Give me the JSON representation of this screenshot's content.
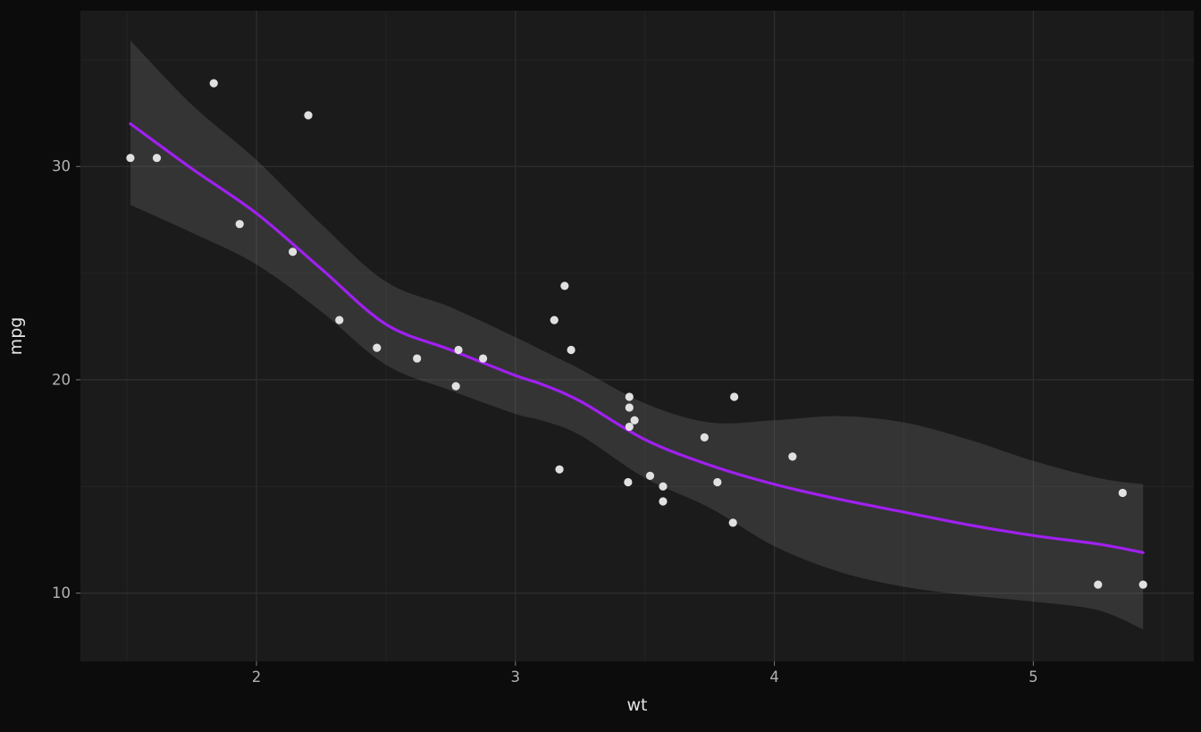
{
  "chart_data": {
    "type": "scatter",
    "title": "",
    "xlabel": "wt",
    "ylabel": "mpg",
    "xlim": [
      1.32,
      5.62
    ],
    "ylim": [
      6.8,
      37.3
    ],
    "x_ticks": [
      2,
      3,
      4,
      5
    ],
    "y_ticks": [
      10,
      20,
      30
    ],
    "x_minor_ticks": [
      1.5,
      2.5,
      3.5,
      4.5,
      5.5
    ],
    "y_minor_ticks": [
      15,
      25,
      35
    ],
    "grid": "major+minor",
    "legend": "none",
    "points": [
      [
        2.62,
        21.0
      ],
      [
        2.875,
        21.0
      ],
      [
        2.32,
        22.8
      ],
      [
        3.215,
        21.4
      ],
      [
        3.44,
        18.7
      ],
      [
        3.46,
        18.1
      ],
      [
        3.57,
        14.3
      ],
      [
        3.19,
        24.4
      ],
      [
        3.15,
        22.8
      ],
      [
        3.44,
        19.2
      ],
      [
        3.44,
        17.8
      ],
      [
        4.07,
        16.4
      ],
      [
        3.73,
        17.3
      ],
      [
        3.78,
        15.2
      ],
      [
        5.25,
        10.4
      ],
      [
        5.424,
        10.4
      ],
      [
        5.345,
        14.7
      ],
      [
        2.2,
        32.4
      ],
      [
        1.615,
        30.4
      ],
      [
        1.835,
        33.9
      ],
      [
        2.465,
        21.5
      ],
      [
        3.52,
        15.5
      ],
      [
        3.435,
        15.2
      ],
      [
        3.84,
        13.3
      ],
      [
        3.845,
        19.2
      ],
      [
        1.935,
        27.3
      ],
      [
        2.14,
        26.0
      ],
      [
        1.513,
        30.4
      ],
      [
        3.17,
        15.8
      ],
      [
        2.77,
        19.7
      ],
      [
        3.57,
        15.0
      ],
      [
        2.78,
        21.4
      ]
    ],
    "smooth": {
      "x": [
        1.513,
        1.75,
        2.0,
        2.25,
        2.5,
        2.75,
        3.0,
        3.1,
        3.25,
        3.5,
        3.75,
        4.0,
        4.25,
        4.5,
        4.75,
        5.0,
        5.25,
        5.424
      ],
      "y": [
        32.0,
        29.9,
        27.8,
        25.2,
        22.6,
        21.4,
        20.2,
        19.8,
        19.0,
        17.2,
        16.0,
        15.1,
        14.4,
        13.8,
        13.2,
        12.7,
        12.3,
        11.9
      ],
      "ymax": [
        35.9,
        32.9,
        30.3,
        27.3,
        24.6,
        23.4,
        22.0,
        21.4,
        20.5,
        18.9,
        18.0,
        18.1,
        18.3,
        18.0,
        17.2,
        16.2,
        15.4,
        15.1
      ],
      "ymin": [
        28.2,
        26.9,
        25.4,
        23.2,
        20.7,
        19.5,
        18.4,
        18.1,
        17.4,
        15.4,
        14.0,
        12.2,
        11.0,
        10.3,
        9.9,
        9.6,
        9.2,
        8.3
      ]
    },
    "colors": {
      "background": "#0c0c0c",
      "panel": "#1b1b1b",
      "grid_major": "#2e2e2e",
      "grid_minor": "#242424",
      "point": "#ebebeb",
      "line": "#a020f0",
      "ribbon": "#8f8f8f",
      "tick_label": "#b3b3b3",
      "axis_title": "#e6e6e6",
      "tick_mark": "#777777"
    }
  }
}
